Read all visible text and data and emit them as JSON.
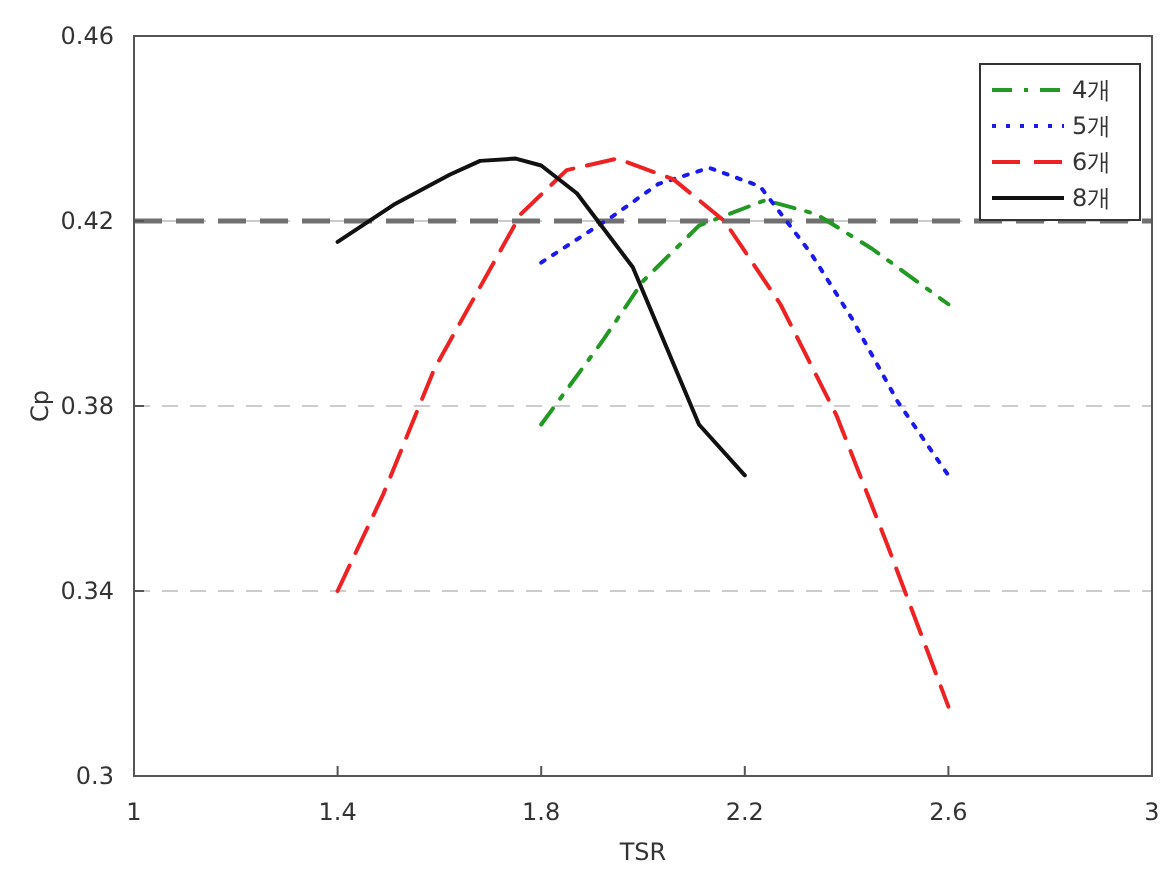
{
  "chart_data": {
    "type": "line",
    "xlabel": "TSR",
    "ylabel": "Cp",
    "xlim": [
      1,
      3
    ],
    "ylim": [
      0.3,
      0.46
    ],
    "xticks": [
      1,
      1.4,
      1.8,
      2.2,
      2.6,
      3
    ],
    "yticks": [
      0.3,
      0.34,
      0.38,
      0.42,
      0.46
    ],
    "grid": "y",
    "legend": "top right",
    "marker": "none",
    "ref_lines": [
      {
        "axis": "y",
        "value": 0.42,
        "color": "#707070",
        "line_style": "dashed"
      }
    ],
    "series": [
      {
        "name": "4개",
        "color": "#229922",
        "line_style": "dashdot",
        "x": [
          1.8,
          1.92,
          2.0,
          2.11,
          2.24,
          2.34,
          2.45,
          2.55,
          2.6
        ],
        "values": [
          0.376,
          0.394,
          0.407,
          0.419,
          0.4245,
          0.4215,
          0.414,
          0.406,
          0.402
        ]
      },
      {
        "name": "5개",
        "color": "#1a1aee",
        "line_style": "dotted",
        "x": [
          1.8,
          1.94,
          2.03,
          2.13,
          2.23,
          2.33,
          2.41,
          2.5,
          2.6
        ],
        "values": [
          0.411,
          0.421,
          0.428,
          0.4315,
          0.4275,
          0.413,
          0.399,
          0.381,
          0.365
        ]
      },
      {
        "name": "6개",
        "color": "#ee2222",
        "line_style": "dashed",
        "x": [
          1.4,
          1.49,
          1.59,
          1.76,
          1.85,
          1.95,
          2.06,
          2.16,
          2.27,
          2.38,
          2.48,
          2.6
        ],
        "values": [
          0.34,
          0.361,
          0.388,
          0.4215,
          0.431,
          0.4335,
          0.429,
          0.42,
          0.402,
          0.378,
          0.35,
          0.315
        ]
      },
      {
        "name": "8개",
        "color": "#111111",
        "line_style": "solid",
        "x": [
          1.4,
          1.51,
          1.62,
          1.68,
          1.75,
          1.8,
          1.87,
          1.98,
          2.11,
          2.2
        ],
        "values": [
          0.4155,
          0.4235,
          0.43,
          0.433,
          0.4335,
          0.432,
          0.426,
          0.41,
          0.376,
          0.365
        ]
      }
    ]
  }
}
